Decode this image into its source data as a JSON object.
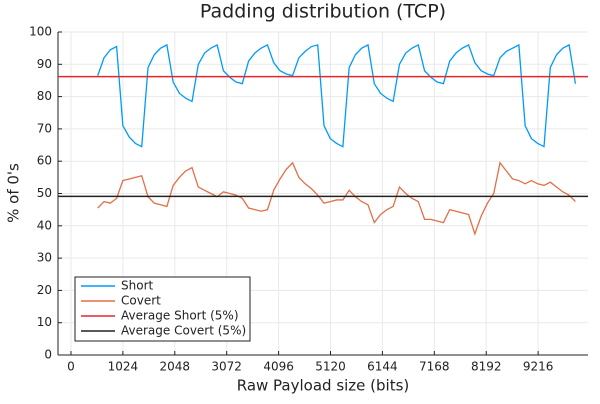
{
  "chart_data": {
    "type": "line",
    "title": "Padding distribution (TCP)",
    "xlabel": "Raw Payload size (bits)",
    "ylabel": "% of 0's",
    "x": [
      528,
      652,
      776,
      900,
      1024,
      1148,
      1272,
      1396,
      1520,
      1644,
      1768,
      1892,
      2016,
      2140,
      2264,
      2388,
      2512,
      2636,
      2760,
      2884,
      3008,
      3132,
      3256,
      3380,
      3504,
      3628,
      3752,
      3876,
      4000,
      4124,
      4248,
      4372,
      4496,
      4620,
      4744,
      4868,
      4992,
      5116,
      5240,
      5364,
      5488,
      5612,
      5736,
      5860,
      5984,
      6108,
      6232,
      6356,
      6480,
      6604,
      6728,
      6852,
      6976,
      7100,
      7224,
      7348,
      7472,
      7596,
      7720,
      7844,
      7968,
      8092,
      8216,
      8340,
      8464,
      8588,
      8712,
      8836,
      8960,
      9084,
      9208,
      9332,
      9456,
      9580,
      9704,
      9828,
      9952
    ],
    "series": [
      {
        "name": "Short",
        "color": "#009afa",
        "values": [
          86.5,
          92,
          94.5,
          95.5,
          71,
          67.5,
          65.5,
          64.5,
          89,
          93,
          95,
          96,
          84.5,
          81,
          79.5,
          78.5,
          90,
          93.5,
          95,
          96,
          88,
          86,
          84.5,
          84,
          91,
          93.5,
          95,
          96,
          90.5,
          88,
          87,
          86.5,
          92,
          94,
          95.5,
          96,
          71,
          67,
          65.5,
          64.5,
          89,
          93,
          95,
          96,
          84,
          81,
          79.5,
          78.5,
          90,
          93.5,
          95,
          96,
          88,
          86,
          84.5,
          84,
          91,
          93.5,
          95,
          96,
          90.5,
          88,
          87,
          86.5,
          92,
          94,
          95,
          96,
          71,
          67,
          65.5,
          64.5,
          89,
          93,
          95,
          96,
          84
        ]
      },
      {
        "name": "Covert",
        "color": "#e26f46",
        "values": [
          45.5,
          47.5,
          47,
          48.5,
          54,
          54.5,
          55,
          55.5,
          49,
          47,
          46.5,
          46,
          52.5,
          55,
          57,
          58,
          52,
          51,
          50,
          49,
          50.5,
          50,
          49.5,
          48.5,
          45.5,
          45,
          44.5,
          45,
          51,
          54.5,
          57.5,
          59.5,
          55,
          53,
          51.5,
          49.5,
          47,
          47.5,
          48,
          48,
          51,
          49,
          47.5,
          46.5,
          41,
          43.5,
          45,
          46,
          52,
          50,
          48.5,
          47.5,
          42,
          42,
          41.5,
          41,
          45,
          44.5,
          44,
          43.5,
          37.5,
          43,
          47,
          50,
          59.5,
          57,
          54.5,
          54,
          53,
          54,
          53,
          52.5,
          53.5,
          52,
          50.5,
          49.5,
          47.5
        ]
      },
      {
        "name": "Average Short (5%)",
        "color": "#e0282e",
        "value": 86.2
      },
      {
        "name": "Average Covert (5%)",
        "color": "#222222",
        "value": 49.1
      }
    ],
    "xlim": [
      -256,
      10200
    ],
    "xticks": [
      0,
      1024,
      2048,
      3072,
      4096,
      5120,
      6144,
      7168,
      8192,
      9216
    ],
    "ylim": [
      0,
      100
    ],
    "yticks": [
      0,
      10,
      20,
      30,
      40,
      50,
      60,
      70,
      80,
      90,
      100
    ],
    "grid": true,
    "legend": "bottom-left"
  }
}
